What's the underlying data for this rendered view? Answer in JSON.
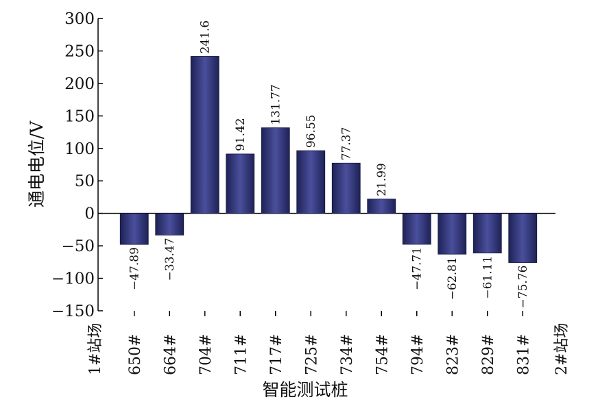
{
  "chart_data": {
    "type": "bar",
    "xlabel": "智能测试桩",
    "ylabel": "通电电位/V",
    "ylim": [
      -150,
      300
    ],
    "yticks": [
      "300",
      "250",
      "200",
      "150",
      "100",
      "50",
      "0",
      "−50",
      "−100",
      "−150"
    ],
    "ytick_values": [
      300,
      250,
      200,
      150,
      100,
      50,
      0,
      -50,
      -100,
      -150
    ],
    "end_labels": {
      "left": "1#站场",
      "right": "2#站场"
    },
    "categories": [
      "650#",
      "664#",
      "704#",
      "711#",
      "717#",
      "725#",
      "734#",
      "754#",
      "794#",
      "823#",
      "829#",
      "831#"
    ],
    "values": [
      -47.89,
      -33.47,
      241.6,
      91.42,
      131.77,
      96.55,
      77.37,
      21.99,
      -47.71,
      -62.81,
      -61.11,
      -75.76
    ],
    "value_labels": [
      "−47.89",
      "−33.47",
      "241.6",
      "91.42",
      "131.77",
      "96.55",
      "77.37",
      "21.99",
      "−47.71",
      "−62.81",
      "−61.11",
      "−75.76"
    ],
    "bar_color": "#2e3272",
    "grid": false
  }
}
